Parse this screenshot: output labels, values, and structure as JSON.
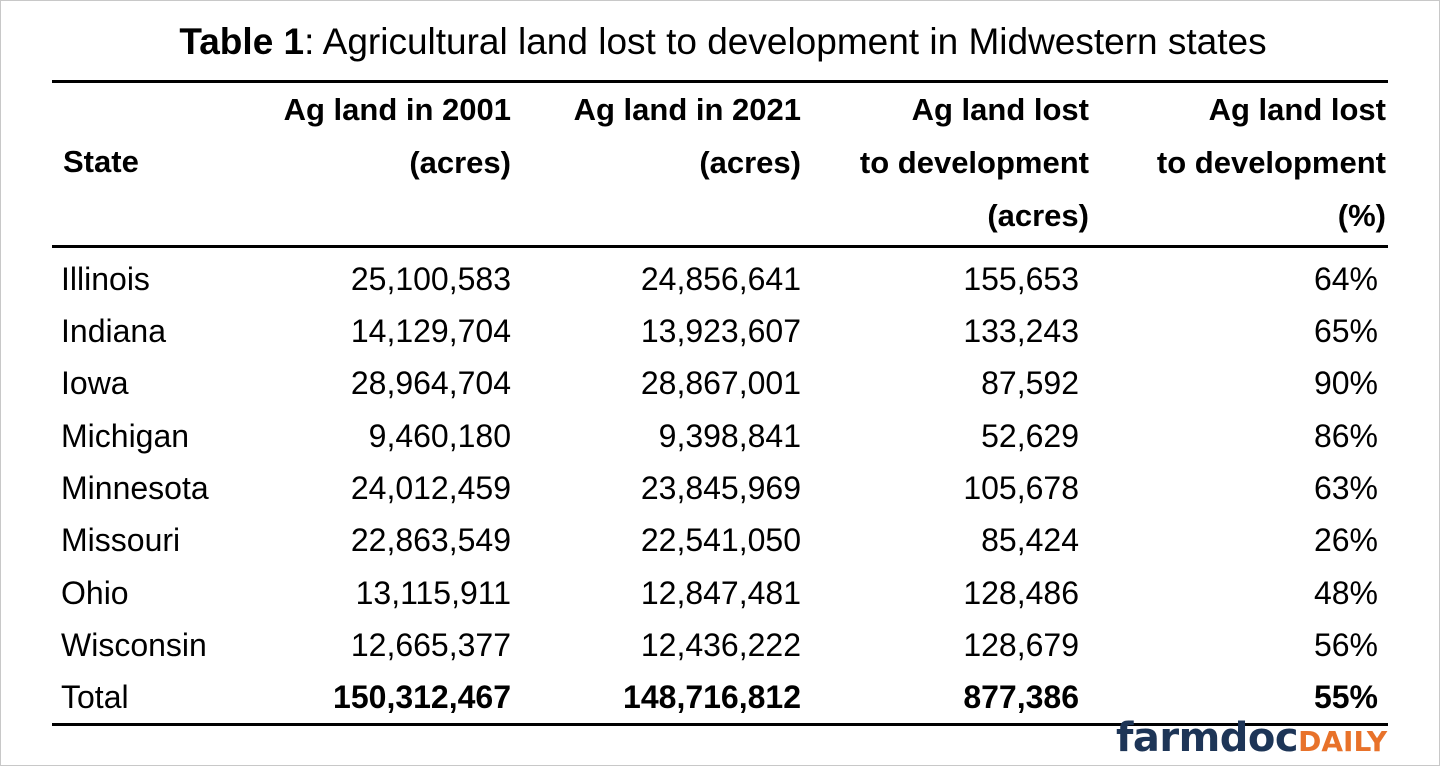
{
  "title": {
    "bold": "Table 1",
    "rest": ": Agricultural land lost to development in Midwestern states"
  },
  "headers": {
    "state": "State",
    "col1": [
      "Ag land in 2001",
      "(acres)"
    ],
    "col2": [
      "Ag land in 2021",
      "(acres)"
    ],
    "col3": [
      "Ag land lost",
      "to development",
      "(acres)"
    ],
    "col4": [
      "Ag land lost",
      "to development",
      "(%)"
    ]
  },
  "rows": [
    {
      "state": "Illinois",
      "ag2001": "25,100,583",
      "ag2021": "24,856,641",
      "lost_acres": "155,653",
      "lost_pct": "64%"
    },
    {
      "state": "Indiana",
      "ag2001": "14,129,704",
      "ag2021": "13,923,607",
      "lost_acres": "133,243",
      "lost_pct": "65%"
    },
    {
      "state": "Iowa",
      "ag2001": "28,964,704",
      "ag2021": "28,867,001",
      "lost_acres": "87,592",
      "lost_pct": "90%"
    },
    {
      "state": "Michigan",
      "ag2001": "9,460,180",
      "ag2021": "9,398,841",
      "lost_acres": "52,629",
      "lost_pct": "86%"
    },
    {
      "state": "Minnesota",
      "ag2001": "24,012,459",
      "ag2021": "23,845,969",
      "lost_acres": "105,678",
      "lost_pct": "63%"
    },
    {
      "state": "Missouri",
      "ag2001": "22,863,549",
      "ag2021": "22,541,050",
      "lost_acres": "85,424",
      "lost_pct": "26%"
    },
    {
      "state": "Ohio",
      "ag2001": "13,115,911",
      "ag2021": "12,847,481",
      "lost_acres": "128,486",
      "lost_pct": "48%"
    },
    {
      "state": "Wisconsin",
      "ag2001": "12,665,377",
      "ag2021": "12,436,222",
      "lost_acres": "128,679",
      "lost_pct": "56%"
    }
  ],
  "total": {
    "state": "Total",
    "ag2001": "150,312,467",
    "ag2021": "148,716,812",
    "lost_acres": "877,386",
    "lost_pct": "55%"
  },
  "logo": {
    "part1": "farmdoc",
    "part2": "DAILY",
    "color1": "#1d3557",
    "color2": "#e8722a"
  }
}
